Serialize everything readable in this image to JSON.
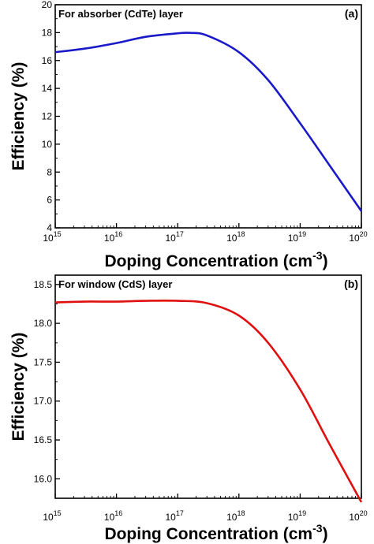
{
  "chart_data": [
    {
      "type": "line",
      "panel_label": "(a)",
      "annotation": "For absorber (CdTe) layer",
      "xlabel": "Doping Concentration (cm",
      "xlabel_sup": "-3",
      "xlabel_close": ")",
      "ylabel": "Efficiency (%)",
      "x_scale": "log",
      "x_ticks": [
        {
          "base": "10",
          "exp": "15",
          "value": 1000000000000000.0
        },
        {
          "base": "10",
          "exp": "16",
          "value": 1e+16
        },
        {
          "base": "10",
          "exp": "17",
          "value": 1e+17
        },
        {
          "base": "10",
          "exp": "18",
          "value": 1e+18
        },
        {
          "base": "10",
          "exp": "19",
          "value": 1e+19
        },
        {
          "base": "10",
          "exp": "20",
          "value": 1e+20
        }
      ],
      "y_ticks": [
        "4",
        "6",
        "8",
        "10",
        "12",
        "14",
        "16",
        "18",
        "20"
      ],
      "xlim": [
        1000000000000000.0,
        1e+20
      ],
      "ylim": [
        4,
        20
      ],
      "grid": false,
      "series": [
        {
          "color": "#1a1ac8",
          "x": [
            1000000000000000.0,
            3000000000000000.0,
            1e+16,
            3e+16,
            1e+17,
            1.6e+17,
            3e+17,
            1e+18,
            3e+18,
            1e+19,
            3e+19,
            1e+20
          ],
          "y": [
            16.6,
            16.85,
            17.25,
            17.7,
            17.95,
            17.98,
            17.8,
            16.6,
            14.6,
            11.5,
            8.5,
            5.2
          ]
        }
      ]
    },
    {
      "type": "line",
      "panel_label": "(b)",
      "annotation": "For window (CdS) layer",
      "xlabel": "Doping Concentration (cm",
      "xlabel_sup": "-3",
      "xlabel_close": ")",
      "ylabel": "Efficiency (%)",
      "x_scale": "log",
      "x_ticks": [
        {
          "base": "10",
          "exp": "15",
          "value": 1000000000000000.0
        },
        {
          "base": "10",
          "exp": "16",
          "value": 1e+16
        },
        {
          "base": "10",
          "exp": "17",
          "value": 1e+17
        },
        {
          "base": "10",
          "exp": "18",
          "value": 1e+18
        },
        {
          "base": "10",
          "exp": "19",
          "value": 1e+19
        },
        {
          "base": "10",
          "exp": "20",
          "value": 1e+20
        }
      ],
      "y_ticks": [
        "16.0",
        "16.5",
        "17.0",
        "17.5",
        "18.0",
        "18.5"
      ],
      "xlim": [
        1000000000000000.0,
        1e+20
      ],
      "ylim": [
        15.75,
        18.62
      ],
      "grid": false,
      "series": [
        {
          "color": "#e01010",
          "x": [
            1000000000000000.0,
            3000000000000000.0,
            1e+16,
            3e+16,
            1e+17,
            3e+17,
            1e+18,
            3e+18,
            1e+19,
            3e+19,
            1e+20
          ],
          "y": [
            18.27,
            18.28,
            18.28,
            18.29,
            18.29,
            18.26,
            18.1,
            17.75,
            17.15,
            16.45,
            15.7
          ]
        }
      ]
    }
  ]
}
